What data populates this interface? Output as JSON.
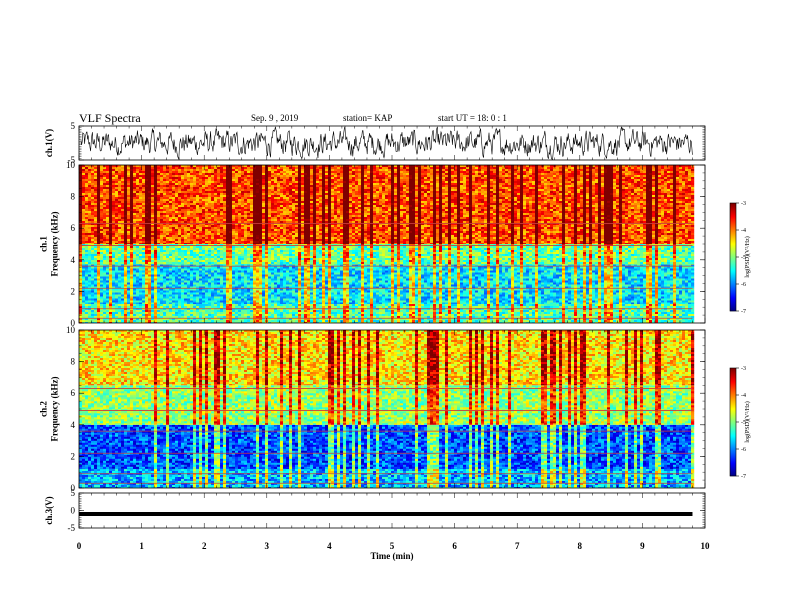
{
  "header": {
    "title": "VLF Spectra",
    "date": "Sep. 9  , 2019",
    "station": "station= KAP",
    "start": "start  UT  =   18: 0  : 1"
  },
  "chart_data": [
    {
      "type": "line",
      "panel": "ch1-waveform",
      "ylabel": "ch.1(V)",
      "ylim": [
        -5,
        5
      ],
      "yticks": [
        "5",
        "-5"
      ],
      "xlim": [
        0,
        10
      ],
      "data_extent_min": [
        0,
        9.8
      ],
      "description_values": {
        "mean": 0,
        "typical_amplitude": 2.5
      }
    },
    {
      "type": "heatmap",
      "panel": "ch1-spectrogram",
      "ylabel": "ch.1\nFrequency (kHz)",
      "ylim": [
        0,
        10
      ],
      "yticks": [
        "0",
        "2",
        "4",
        "6",
        "8",
        "10"
      ],
      "xlim": [
        0,
        10
      ],
      "data_extent_min": [
        0,
        9.8
      ],
      "colorbar": {
        "label": "log(PSD)(V²/Hz)",
        "ticks": [
          "-3",
          "-4",
          "-5",
          "-6",
          "-7"
        ],
        "range": [
          -7,
          -3
        ]
      },
      "bands_kHz": [
        {
          "from": 0,
          "to": 1.2,
          "log_psd": -5.2
        },
        {
          "from": 1.2,
          "to": 3.7,
          "log_psd": -5.6
        },
        {
          "from": 3.7,
          "to": 5.0,
          "log_psd": -5.1
        },
        {
          "from": 5.0,
          "to": 10,
          "log_psd": -3.8
        }
      ]
    },
    {
      "type": "heatmap",
      "panel": "ch2-spectrogram",
      "ylabel": "ch.2\nFrequency (kHz)",
      "ylim": [
        0,
        10
      ],
      "yticks": [
        "0",
        "2",
        "4",
        "6",
        "8",
        "10"
      ],
      "xlim": [
        0,
        10
      ],
      "data_extent_min": [
        0,
        9.8
      ],
      "colorbar": {
        "label": "log(PSD)(V²/Hz)",
        "ticks": [
          "-3",
          "-4",
          "-5",
          "-6",
          "-7"
        ],
        "range": [
          -7,
          -3
        ]
      },
      "bands_kHz": [
        {
          "from": 0,
          "to": 1.2,
          "log_psd": -5.8
        },
        {
          "from": 1.2,
          "to": 4.0,
          "log_psd": -6.2
        },
        {
          "from": 4.0,
          "to": 6.5,
          "log_psd": -4.9
        },
        {
          "from": 6.5,
          "to": 10,
          "log_psd": -4.4
        }
      ]
    },
    {
      "type": "line",
      "panel": "ch3-waveform",
      "ylabel": "ch.3(V)",
      "ylim": [
        -5,
        5
      ],
      "yticks": [
        "5",
        "0",
        "-5"
      ],
      "xlim": [
        0,
        10
      ],
      "data_extent_min": [
        0,
        9.8
      ],
      "constant_value": -1
    }
  ],
  "xaxis": {
    "label": "Time  (min)",
    "ticks": [
      "0",
      "1",
      "2",
      "3",
      "4",
      "5",
      "6",
      "7",
      "8",
      "9",
      "10"
    ]
  },
  "colors": {
    "jet": [
      "#00007f",
      "#0000ff",
      "#007fff",
      "#00ffff",
      "#7fff7f",
      "#ffff00",
      "#ff7f00",
      "#ff0000",
      "#7f0000"
    ]
  }
}
